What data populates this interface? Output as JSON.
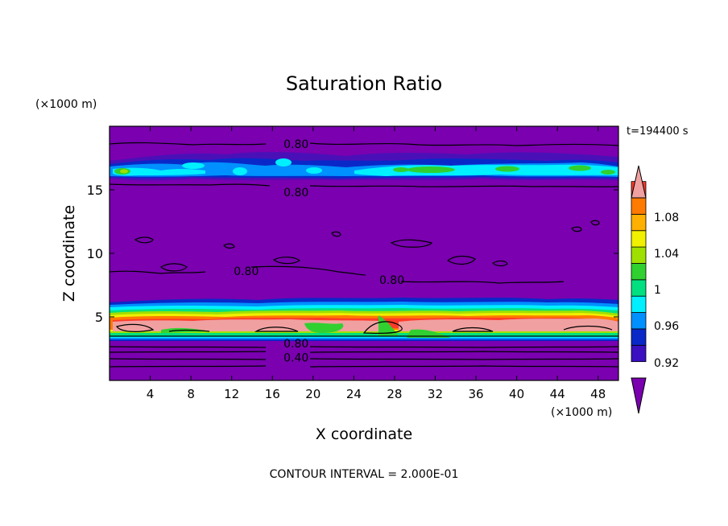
{
  "chart_data": {
    "type": "heatmap",
    "title": "Saturation Ratio",
    "xlabel": "X coordinate",
    "ylabel": "Z coordinate",
    "x_unit": "(×1000 m)",
    "y_unit": "(×1000 m)",
    "time_label": "t=194400 s",
    "footer": "CONTOUR INTERVAL = 2.000E-01",
    "xlim": [
      0,
      50
    ],
    "ylim": [
      0,
      20
    ],
    "x_ticks": [
      4,
      8,
      12,
      16,
      20,
      24,
      28,
      32,
      36,
      40,
      44,
      48
    ],
    "y_ticks": [
      5,
      10,
      15
    ],
    "contour_interval": 0.2,
    "contour_labels": [
      {
        "text": "0.80",
        "x": 17.1,
        "z": 18.6
      },
      {
        "text": "0.80",
        "x": 17.1,
        "z": 14.8
      },
      {
        "text": "0.80",
        "x": 12.2,
        "z": 8.6
      },
      {
        "text": "0.80",
        "x": 26.5,
        "z": 7.9
      },
      {
        "text": "0.80",
        "x": 17.1,
        "z": 2.9
      },
      {
        "text": "0.40",
        "x": 17.1,
        "z": 1.8
      }
    ],
    "colorbar": {
      "levels": [
        0.92,
        0.96,
        1,
        1.04,
        1.08
      ],
      "level_labels": [
        "0.92",
        "0.96",
        "1",
        "1.04",
        "1.08"
      ],
      "colors": [
        "#7a00b0",
        "#3a10c0",
        "#0a28c8",
        "#0090ff",
        "#00f0ff",
        "#00e080",
        "#30d030",
        "#a0e000",
        "#f0f000",
        "#ffb000",
        "#ff7a00",
        "#ff3a2a",
        "#f0a0a0"
      ]
    },
    "layers": [
      {
        "name": "background",
        "z": [
          0,
          20
        ],
        "color": "#7a00b0"
      },
      {
        "name": "upper-band",
        "z": [
          15.4,
          17.6
        ],
        "values": "0.92-1.04"
      },
      {
        "name": "lower-band",
        "z": [
          3.2,
          5.8
        ],
        "values": "0.92-1.08+"
      }
    ]
  }
}
